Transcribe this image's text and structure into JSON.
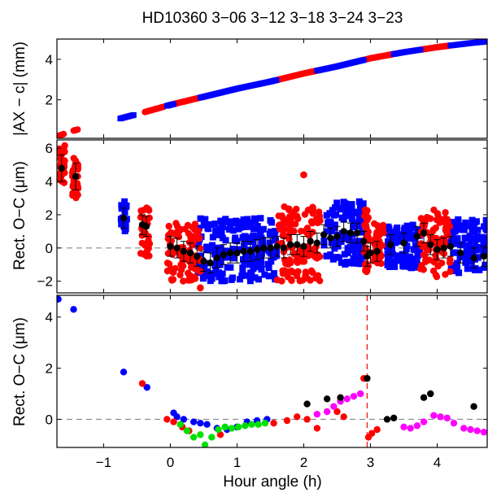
{
  "chart_data": [
    {
      "type": "scatter",
      "panel": "top",
      "title": "HD10360  3−06 3−12 3−18 3−24 3−23",
      "xlabel": "",
      "ylabel": "|AX − c| (mm)",
      "xlim": [
        -1.7,
        4.75
      ],
      "ylim": [
        0.1,
        5.0
      ],
      "yticks": [
        2,
        4
      ],
      "ytick_labels": [
        "2",
        "4"
      ],
      "series": [
        {
          "name": "red",
          "color": "#ff0000",
          "marker": "circle",
          "segments": [
            [
              -1.68,
              -1.6
            ],
            [
              -1.45,
              -1.38
            ],
            [
              -0.38,
              -0.1
            ],
            [
              0.05,
              0.45
            ],
            [
              1.6,
              2.2
            ],
            [
              2.9,
              3.35
            ],
            [
              3.75,
              4.2
            ]
          ]
        },
        {
          "name": "blue",
          "color": "#0000ff",
          "marker": "square",
          "segments": [
            [
              -0.75,
              -0.55
            ],
            [
              -0.05,
              0.05
            ],
            [
              0.45,
              1.6
            ],
            [
              2.2,
              2.9
            ],
            [
              3.35,
              3.75
            ],
            [
              4.2,
              4.75
            ]
          ]
        }
      ],
      "curve_points": [
        [
          -1.68,
          0.22
        ],
        [
          -1.45,
          0.48
        ],
        [
          -0.7,
          1.12
        ],
        [
          -0.4,
          1.38
        ],
        [
          0,
          1.75
        ],
        [
          0.5,
          2.15
        ],
        [
          1,
          2.55
        ],
        [
          1.5,
          2.9
        ],
        [
          2,
          3.3
        ],
        [
          2.5,
          3.65
        ],
        [
          3,
          4.05
        ],
        [
          3.5,
          4.35
        ],
        [
          4,
          4.6
        ],
        [
          4.5,
          4.8
        ],
        [
          4.75,
          4.88
        ]
      ]
    },
    {
      "type": "scatter",
      "panel": "middle",
      "xlabel": "",
      "ylabel": "Rect. O−C (μm)",
      "xlim": [
        -1.7,
        4.75
      ],
      "ylim": [
        -2.7,
        6.5
      ],
      "yticks": [
        -2,
        0,
        2,
        4,
        6
      ],
      "ytick_labels": [
        "−2",
        "0",
        "2",
        "4",
        "6"
      ],
      "reference_line": 0,
      "series": [
        {
          "name": "red",
          "color": "#ff0000",
          "marker": "circle",
          "clusters": [
            {
              "x": [
                -1.68,
                -1.58
              ],
              "y": [
                3.8,
                6.3
              ]
            },
            {
              "x": [
                -1.47,
                -1.38
              ],
              "y": [
                3.0,
                5.5
              ]
            },
            {
              "x": [
                -0.45,
                -0.3
              ],
              "y": [
                -0.5,
                2.5
              ]
            },
            {
              "x": [
                -0.05,
                0.45
              ],
              "y": [
                -2.0,
                1.5
              ]
            },
            {
              "x": [
                0.45,
                0.45
              ],
              "y": [
                -2.4,
                -2.4
              ]
            },
            {
              "x": [
                1.6,
                2.25
              ],
              "y": [
                -2.0,
                2.5
              ]
            },
            {
              "x": [
                2.0,
                2.0
              ],
              "y": [
                4.4,
                4.4
              ]
            },
            {
              "x": [
                2.9,
                2.97
              ],
              "y": [
                -1.5,
                2.5
              ]
            },
            {
              "x": [
                3.05,
                3.2
              ],
              "y": [
                -1.0,
                1.5
              ]
            },
            {
              "x": [
                3.75,
                4.2
              ],
              "y": [
                -1.8,
                2.3
              ]
            }
          ]
        },
        {
          "name": "blue",
          "color": "#0000ff",
          "marker": "square",
          "clusters": [
            {
              "x": [
                -0.75,
                -0.65
              ],
              "y": [
                0.8,
                2.8
              ]
            },
            {
              "x": [
                0.4,
                1.6
              ],
              "y": [
                -2.0,
                1.8
              ]
            },
            {
              "x": [
                2.3,
                2.9
              ],
              "y": [
                -1.0,
                2.8
              ]
            },
            {
              "x": [
                3.25,
                3.75
              ],
              "y": [
                -1.2,
                1.5
              ]
            },
            {
              "x": [
                4.2,
                4.75
              ],
              "y": [
                -1.5,
                1.8
              ]
            }
          ]
        },
        {
          "name": "binned mean",
          "color": "#000000",
          "marker": "circle",
          "x": [
            -1.63,
            -1.42,
            -0.7,
            -0.42,
            -0.36,
            0.0,
            0.1,
            0.2,
            0.3,
            0.4,
            0.5,
            0.6,
            0.7,
            0.8,
            0.9,
            1.0,
            1.1,
            1.2,
            1.3,
            1.4,
            1.5,
            1.6,
            1.7,
            1.8,
            1.9,
            2.0,
            2.1,
            2.2,
            2.3,
            2.4,
            2.5,
            2.6,
            2.7,
            2.8,
            2.9,
            2.95,
            3.0,
            3.1,
            3.3,
            3.5,
            3.7,
            3.8,
            3.9,
            4.0,
            4.1,
            4.2,
            4.35,
            4.55,
            4.7
          ],
          "y": [
            4.8,
            4.3,
            1.8,
            1.4,
            1.3,
            0.1,
            0.0,
            -0.2,
            -0.3,
            -0.5,
            -0.8,
            -0.9,
            -0.6,
            -0.4,
            -0.3,
            -0.3,
            -0.2,
            -0.2,
            -0.1,
            0.0,
            0.0,
            0.1,
            0.0,
            0.2,
            0.2,
            0.1,
            0.4,
            0.3,
            0.8,
            0.6,
            0.7,
            1.0,
            0.9,
            0.9,
            0.4,
            -0.5,
            -0.3,
            -0.2,
            0.2,
            0.3,
            0.7,
            0.9,
            0.2,
            -0.1,
            0.0,
            0.1,
            -0.3,
            -0.6,
            -0.5
          ],
          "err": [
            0.8,
            0.8,
            0.6,
            0.6,
            0.6,
            0.6,
            0.6,
            0.6,
            0.6,
            0.6,
            0.6,
            0.6,
            0.6,
            0.6,
            0.6,
            0.6,
            0.6,
            0.6,
            0.6,
            0.6,
            0.6,
            0.6,
            0.6,
            0.6,
            0.6,
            0.6,
            0.6,
            0.6,
            0.6,
            0.6,
            0.6,
            0.6,
            0.6,
            0.6,
            0.6,
            0.6,
            0.6,
            0.6,
            0.6,
            0.6,
            0.6,
            0.6,
            0.6,
            0.6,
            0.6,
            0.6,
            0.6,
            0.6,
            0.6
          ]
        }
      ]
    },
    {
      "type": "scatter",
      "panel": "bottom",
      "xlabel": "Hour angle (h)",
      "ylabel": "Rect. O−C (μm)",
      "xlim": [
        -1.7,
        4.75
      ],
      "ylim": [
        -1.1,
        4.85
      ],
      "xticks": [
        -1,
        0,
        1,
        2,
        3,
        4
      ],
      "xtick_labels": [
        "−1",
        "0",
        "1",
        "2",
        "3",
        "4"
      ],
      "yticks": [
        0,
        2,
        4
      ],
      "ytick_labels": [
        "0",
        "2",
        "4"
      ],
      "reference_line": 0,
      "marker_line_x": 2.95,
      "series": [
        {
          "name": "blue",
          "color": "#0000ff",
          "x": [
            -1.68,
            -1.45,
            -0.7,
            -0.35,
            0.05,
            0.1,
            0.2,
            0.35,
            0.45,
            0.55,
            0.7,
            0.85,
            1.0,
            1.15,
            1.3,
            1.45
          ],
          "y": [
            4.7,
            4.3,
            1.85,
            1.25,
            0.25,
            0.1,
            0.0,
            -0.1,
            -0.15,
            -0.2,
            -0.35,
            -0.4,
            -0.3,
            -0.1,
            -0.05,
            0.0
          ]
        },
        {
          "name": "red",
          "color": "#ff0000",
          "x": [
            -0.42,
            -0.05,
            0.05,
            0.18,
            0.28,
            0.75,
            1.55,
            1.75,
            1.9,
            2.05,
            2.2,
            2.5,
            2.6,
            2.9,
            2.97,
            3.02,
            3.1
          ],
          "y": [
            1.4,
            0.0,
            -0.1,
            -0.3,
            -0.45,
            -0.6,
            -0.15,
            -0.05,
            0.1,
            0.0,
            -0.35,
            0.3,
            0.1,
            1.6,
            -0.7,
            -0.55,
            -0.4
          ]
        },
        {
          "name": "green",
          "color": "#00e000",
          "x": [
            0.15,
            0.25,
            0.35,
            0.45,
            0.52,
            0.62,
            0.72,
            0.82,
            0.92,
            1.02,
            1.12,
            1.22,
            1.32,
            1.42
          ],
          "y": [
            -0.2,
            -0.45,
            -0.7,
            -0.6,
            -1.0,
            -0.7,
            -0.4,
            -0.3,
            -0.35,
            -0.3,
            -0.25,
            -0.2,
            -0.2,
            -0.15
          ]
        },
        {
          "name": "magenta",
          "color": "#ff00ff",
          "x": [
            2.2,
            2.35,
            2.45,
            2.55,
            2.65,
            2.75,
            2.85,
            3.5,
            3.6,
            3.7,
            3.8,
            3.95,
            4.05,
            4.15,
            4.25,
            4.4,
            4.5,
            4.6,
            4.7
          ],
          "y": [
            0.2,
            0.3,
            0.5,
            0.7,
            0.8,
            0.9,
            1.0,
            -0.3,
            -0.35,
            -0.25,
            -0.1,
            0.15,
            0.1,
            0.05,
            -0.15,
            -0.35,
            -0.4,
            -0.45,
            -0.5
          ]
        },
        {
          "name": "black",
          "color": "#000000",
          "x": [
            2.05,
            2.35,
            2.55,
            2.95,
            3.25,
            3.35,
            3.8,
            3.9,
            4.55
          ],
          "y": [
            0.6,
            0.8,
            0.85,
            1.6,
            0.0,
            0.05,
            0.85,
            1.0,
            0.5
          ]
        }
      ]
    }
  ]
}
